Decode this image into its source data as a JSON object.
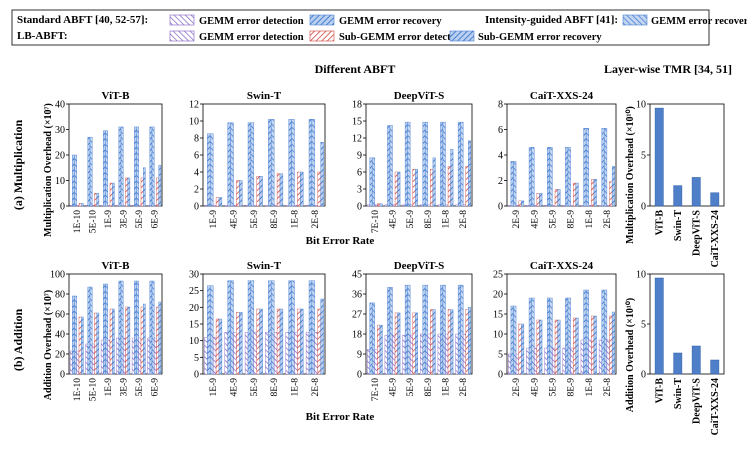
{
  "legend": {
    "standard_label": "Standard ABFT [40, 52-57]:",
    "intensity_label": "Intensity-guided ABFT [41]:",
    "lb_label": "LB-ABFT:",
    "items": {
      "gemm_detection": "GEMM error detection",
      "gemm_recovery": "GEMM error recovery",
      "intensity_recovery": "GEMM error recovery",
      "lb_gemm_detection": "GEMM error detection",
      "sub_detection": "Sub-GEMM error detection",
      "sub_recovery": "Sub-GEMM error recovery"
    }
  },
  "headings": {
    "different_abft": "Different ABFT",
    "tmr": "Layer-wise TMR [34, 51]"
  },
  "rows": {
    "mult": {
      "row_label": "(a) Multiplication",
      "ylabel": "Multiplication Overhead (×10⁷)",
      "tmr_ylabel": "Multiplication Overhead (×10¹⁰)"
    },
    "add": {
      "row_label": "(b) Addition",
      "ylabel": "Addition Overhead (×10⁷)",
      "tmr_ylabel": "Addition Overhead (×10¹⁰)"
    }
  },
  "xlabel": "Bit Error Rate",
  "colors": {
    "blue_hatch": "#5b8fd6",
    "purple_hatch": "#8c6fc9",
    "red_hatch": "#d9534f",
    "tmr_bar": "#4e7fc8"
  },
  "chart_data": [
    {
      "type": "bar",
      "panel": "mult-vitb",
      "title": "ViT-B",
      "ylim": [
        0,
        40
      ],
      "ticks": [
        0,
        10,
        20,
        30,
        40
      ],
      "categories": [
        "1E-10",
        "5E-10",
        "1E-9",
        "3E-9",
        "5E-9",
        "6E-9"
      ],
      "series": [
        {
          "name": "GEMM error detection",
          "values": [
            0.3,
            0.3,
            0.3,
            0.3,
            0.3,
            0.3
          ]
        },
        {
          "name": "GEMM error recovery",
          "values": [
            20,
            27,
            29.5,
            31,
            31,
            31
          ]
        },
        {
          "name": "GEMM error recovery (Intensity-guided ABFT)",
          "values": [
            20,
            27,
            29.5,
            31,
            31,
            31
          ]
        },
        {
          "name": "GEMM error detection (LB-ABFT)",
          "values": [
            0.3,
            0.3,
            0.3,
            0.3,
            0.3,
            0.3
          ]
        },
        {
          "name": "Sub-GEMM error detection",
          "values": [
            1,
            5,
            9,
            11,
            11,
            11
          ]
        },
        {
          "name": "Sub-GEMM error recovery",
          "values": [
            1,
            5,
            9,
            11,
            15,
            16
          ]
        }
      ]
    },
    {
      "type": "bar",
      "panel": "mult-swint",
      "title": "Swin-T",
      "ylim": [
        0,
        12
      ],
      "ticks": [
        0,
        2,
        4,
        6,
        8,
        10,
        12
      ],
      "categories": [
        "1E-9",
        "4E-9",
        "5E-9",
        "8E-9",
        "1E-8",
        "2E-8"
      ],
      "series": [
        {
          "name": "GEMM error detection",
          "values": [
            0.1,
            0.1,
            0.1,
            0.1,
            0.1,
            0.1
          ]
        },
        {
          "name": "GEMM error recovery",
          "values": [
            8.5,
            9.8,
            9.8,
            10.2,
            10.2,
            10.2
          ]
        },
        {
          "name": "GEMM error recovery (Intensity-guided ABFT)",
          "values": [
            8.5,
            9.8,
            9.8,
            10.2,
            10.2,
            10.2
          ]
        },
        {
          "name": "GEMM error detection (LB-ABFT)",
          "values": [
            0.1,
            0.1,
            0.1,
            0.1,
            0.1,
            0.1
          ]
        },
        {
          "name": "Sub-GEMM error detection",
          "values": [
            1,
            3,
            3.5,
            3.8,
            4,
            4
          ]
        },
        {
          "name": "Sub-GEMM error recovery",
          "values": [
            1,
            3,
            3.5,
            3.8,
            4,
            7.5
          ]
        }
      ]
    },
    {
      "type": "bar",
      "panel": "mult-deepvits",
      "title": "DeepViT-S",
      "ylim": [
        0,
        18
      ],
      "ticks": [
        0,
        3,
        6,
        9,
        12,
        15,
        18
      ],
      "categories": [
        "7E-10",
        "4E-9",
        "5E-9",
        "8E-9",
        "1E-8",
        "2E-8"
      ],
      "series": [
        {
          "name": "GEMM error detection",
          "values": [
            0.2,
            0.2,
            0.2,
            0.2,
            0.2,
            0.2
          ]
        },
        {
          "name": "GEMM error recovery",
          "values": [
            8.5,
            14.2,
            14.8,
            14.8,
            14.8,
            14.8
          ]
        },
        {
          "name": "GEMM error recovery (Intensity-guided ABFT)",
          "values": [
            8.5,
            14.2,
            14.8,
            14.8,
            14.8,
            14.8
          ]
        },
        {
          "name": "GEMM error detection (LB-ABFT)",
          "values": [
            0.2,
            0.2,
            0.2,
            0.2,
            0.2,
            0.2
          ]
        },
        {
          "name": "Sub-GEMM error detection",
          "values": [
            0.4,
            6,
            6.5,
            6.5,
            7,
            7
          ]
        },
        {
          "name": "Sub-GEMM error recovery",
          "values": [
            0.4,
            6,
            6.5,
            8.5,
            10,
            11.5
          ]
        }
      ]
    },
    {
      "type": "bar",
      "panel": "mult-caitxxs24",
      "title": "CaiT-XXS-24",
      "ylim": [
        0,
        8
      ],
      "ticks": [
        0,
        2,
        4,
        6,
        8
      ],
      "categories": [
        "2E-9",
        "4E-9",
        "5E-9",
        "8E-9",
        "1E-8",
        "2E-8"
      ],
      "series": [
        {
          "name": "GEMM error detection",
          "values": [
            0.05,
            0.05,
            0.05,
            0.05,
            0.05,
            0.05
          ]
        },
        {
          "name": "GEMM error recovery",
          "values": [
            3.5,
            4.6,
            4.6,
            4.6,
            6.1,
            6.1
          ]
        },
        {
          "name": "GEMM error recovery (Intensity-guided ABFT)",
          "values": [
            3.5,
            4.6,
            4.6,
            4.6,
            6.1,
            6.1
          ]
        },
        {
          "name": "GEMM error detection (LB-ABFT)",
          "values": [
            0.05,
            0.05,
            0.05,
            0.05,
            0.05,
            0.05
          ]
        },
        {
          "name": "Sub-GEMM error detection",
          "values": [
            0.4,
            1,
            1.3,
            1.8,
            2.1,
            1.9
          ]
        },
        {
          "name": "Sub-GEMM error recovery",
          "values": [
            0.4,
            1,
            1.3,
            1.8,
            2.1,
            3.1
          ]
        }
      ]
    },
    {
      "type": "bar",
      "panel": "mult-tmr",
      "title": "",
      "ylim": [
        0,
        10
      ],
      "ticks": [
        0,
        5,
        10
      ],
      "categories": [
        "ViT-B",
        "Swin-T",
        "DeepViT-S",
        "CaiT-XXS-24"
      ],
      "series": [
        {
          "values": [
            9.6,
            2,
            2.8,
            1.3
          ]
        }
      ]
    },
    {
      "type": "bar",
      "panel": "add-vitb",
      "title": "ViT-B",
      "ylim": [
        0,
        100
      ],
      "ticks": [
        0,
        20,
        40,
        60,
        80,
        100
      ],
      "categories": [
        "1E-10",
        "5E-10",
        "1E-9",
        "3E-9",
        "5E-9",
        "6E-9"
      ],
      "series": [
        {
          "name": "GEMM error detection",
          "values": [
            23,
            30,
            34,
            36,
            36,
            36
          ]
        },
        {
          "name": "GEMM error recovery",
          "values": [
            78,
            87,
            90,
            93,
            93,
            93
          ]
        },
        {
          "name": "GEMM error recovery (Intensity-guided ABFT)",
          "values": [
            78,
            87,
            90,
            93,
            93,
            93
          ]
        },
        {
          "name": "GEMM error detection (LB-ABFT)",
          "values": [
            23,
            30,
            34,
            36,
            36,
            36
          ]
        },
        {
          "name": "Sub-GEMM error detection",
          "values": [
            57,
            61,
            65,
            67,
            67,
            67
          ]
        },
        {
          "name": "Sub-GEMM error recovery",
          "values": [
            57,
            61,
            65,
            67,
            70,
            72
          ]
        }
      ]
    },
    {
      "type": "bar",
      "panel": "add-swint",
      "title": "Swin-T",
      "ylim": [
        0,
        30
      ],
      "ticks": [
        0,
        5,
        10,
        15,
        20,
        25,
        30
      ],
      "categories": [
        "1E-9",
        "4E-9",
        "5E-9",
        "8E-9",
        "1E-8",
        "2E-8"
      ],
      "series": [
        {
          "name": "GEMM error detection",
          "values": [
            11,
            12.5,
            12.5,
            12.5,
            12.5,
            12.5
          ]
        },
        {
          "name": "GEMM error recovery",
          "values": [
            26.5,
            28,
            28,
            28,
            28,
            28
          ]
        },
        {
          "name": "GEMM error recovery (Intensity-guided ABFT)",
          "values": [
            26.5,
            28,
            28,
            28,
            28,
            28
          ]
        },
        {
          "name": "GEMM error detection (LB-ABFT)",
          "values": [
            11,
            12.5,
            12.5,
            12.5,
            12.5,
            12.5
          ]
        },
        {
          "name": "Sub-GEMM error detection",
          "values": [
            16.5,
            18.5,
            19.5,
            19.5,
            19.5,
            19.5
          ]
        },
        {
          "name": "Sub-GEMM error recovery",
          "values": [
            16.5,
            18.5,
            19.5,
            19.5,
            19.5,
            22.5
          ]
        }
      ]
    },
    {
      "type": "bar",
      "panel": "add-deepvits",
      "title": "DeepViT-S",
      "ylim": [
        0,
        45
      ],
      "ticks": [
        0,
        9,
        18,
        27,
        36,
        45
      ],
      "categories": [
        "7E-10",
        "4E-9",
        "5E-9",
        "8E-9",
        "1E-8",
        "2E-8"
      ],
      "series": [
        {
          "name": "GEMM error detection",
          "values": [
            11,
            17.5,
            17.5,
            18,
            18,
            18
          ]
        },
        {
          "name": "GEMM error recovery",
          "values": [
            32,
            39,
            40,
            40,
            40,
            40
          ]
        },
        {
          "name": "GEMM error recovery (Intensity-guided ABFT)",
          "values": [
            32,
            39,
            40,
            40,
            40,
            40
          ]
        },
        {
          "name": "GEMM error detection (LB-ABFT)",
          "values": [
            11,
            17.5,
            17.5,
            18,
            18,
            18
          ]
        },
        {
          "name": "Sub-GEMM error detection",
          "values": [
            22,
            27.5,
            27.5,
            29,
            29,
            29
          ]
        },
        {
          "name": "Sub-GEMM error recovery",
          "values": [
            22,
            27.5,
            27.5,
            29,
            29,
            30
          ]
        }
      ]
    },
    {
      "type": "bar",
      "panel": "add-caitxxs24",
      "title": "CaiT-XXS-24",
      "ylim": [
        0,
        25
      ],
      "ticks": [
        0,
        5,
        10,
        15,
        20,
        25
      ],
      "categories": [
        "2E-9",
        "4E-9",
        "5E-9",
        "8E-9",
        "1E-8",
        "2E-8"
      ],
      "series": [
        {
          "name": "GEMM error detection",
          "values": [
            5,
            6.5,
            6.5,
            6.5,
            8.5,
            8.5
          ]
        },
        {
          "name": "GEMM error recovery",
          "values": [
            17,
            19,
            19,
            19,
            21,
            21
          ]
        },
        {
          "name": "GEMM error recovery (Intensity-guided ABFT)",
          "values": [
            17,
            19,
            19,
            19,
            21,
            21
          ]
        },
        {
          "name": "GEMM error detection (LB-ABFT)",
          "values": [
            5,
            6.5,
            6.5,
            6.5,
            8.5,
            8.5
          ]
        },
        {
          "name": "Sub-GEMM error detection",
          "values": [
            12.5,
            13.5,
            13.5,
            14,
            14.5,
            14.5
          ]
        },
        {
          "name": "Sub-GEMM error recovery",
          "values": [
            12.5,
            13.5,
            13.5,
            14,
            14.5,
            15.5
          ]
        }
      ]
    },
    {
      "type": "bar",
      "panel": "add-tmr",
      "title": "",
      "ylim": [
        0,
        10
      ],
      "ticks": [
        0,
        5,
        10
      ],
      "categories": [
        "ViT-B",
        "Swin-T",
        "DeepViT-S",
        "CaiT-XXS-24"
      ],
      "series": [
        {
          "values": [
            9.6,
            2.1,
            2.8,
            1.4
          ]
        }
      ]
    }
  ]
}
